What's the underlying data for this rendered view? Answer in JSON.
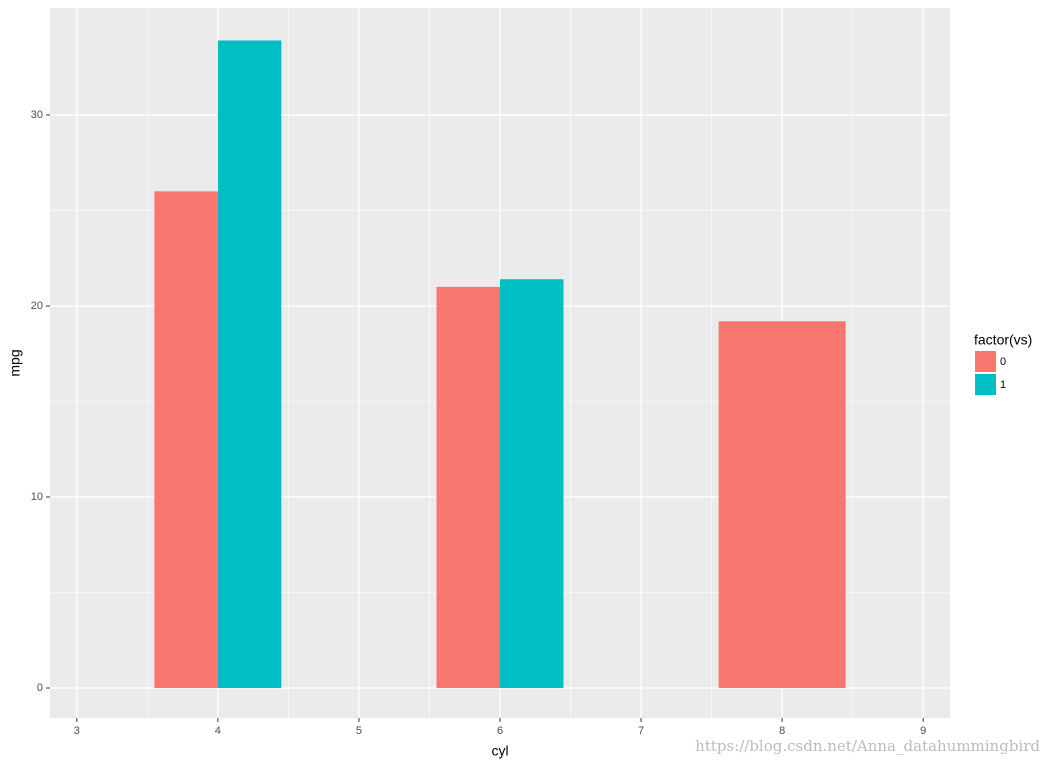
{
  "chart_data": {
    "type": "bar",
    "x_label": "cyl",
    "y_label": "mpg",
    "x": [
      4,
      6,
      8
    ],
    "series": [
      {
        "name": "0",
        "color": "#F8766D",
        "values": [
          26,
          21,
          19.2
        ]
      },
      {
        "name": "1",
        "color": "#00BFC4",
        "values": [
          33.9,
          21.4,
          null
        ]
      }
    ],
    "legend_title": "factor(vs)",
    "xlim": [
      2.81,
      9.19
    ],
    "xticks": [
      3,
      4,
      5,
      6,
      7,
      8,
      9
    ],
    "ylim": [
      -1.57,
      35.6
    ],
    "yticks": [
      0,
      10,
      20,
      30
    ],
    "grid": true,
    "legend": "right",
    "watermark": "https://blog.csdn.net/Anna_datahummingbird"
  }
}
